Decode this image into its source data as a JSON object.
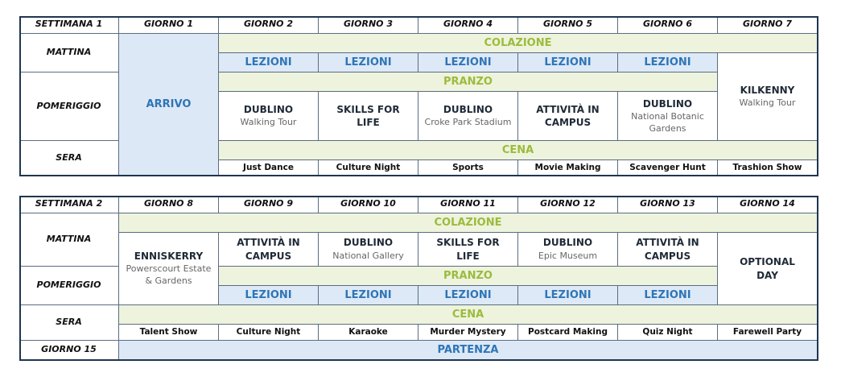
{
  "tables": [
    {
      "cells": [
        {
          "title": "SETTIMANA 1"
        },
        {
          "title": "GIORNO 1"
        },
        {
          "title": "GIORNO 2"
        },
        {
          "title": "GIORNO 3"
        },
        {
          "title": "GIORNO 4"
        },
        {
          "title": "GIORNO 5"
        },
        {
          "title": "GIORNO 6"
        },
        {
          "title": "GIORNO 7"
        },
        {
          "title": "MATTINA"
        },
        {
          "title": "POMERIGGIO"
        },
        {
          "title": "SERA"
        },
        {
          "title": "ARRIVO"
        },
        {
          "title": "COLAZIONE"
        },
        {
          "title": "LEZIONI"
        },
        {
          "title": "LEZIONI"
        },
        {
          "title": "LEZIONI"
        },
        {
          "title": "LEZIONI"
        },
        {
          "title": "LEZIONI"
        },
        {
          "title": "KILKENNY",
          "subtitle": "Walking Tour"
        },
        {
          "title": "PRANZO"
        },
        {
          "title": "DUBLINO",
          "subtitle": "Walking Tour"
        },
        {
          "title": "SKILLS FOR LIFE"
        },
        {
          "title": "DUBLINO",
          "subtitle": "Croke Park Stadium"
        },
        {
          "title": "ATTIVITÀ IN CAMPUS"
        },
        {
          "title": "DUBLINO",
          "subtitle": "National Botanic Gardens"
        },
        {
          "title": "CENA"
        },
        {
          "title": "Just Dance"
        },
        {
          "title": "Culture Night"
        },
        {
          "title": "Sports"
        },
        {
          "title": "Movie Making"
        },
        {
          "title": "Scavenger Hunt"
        },
        {
          "title": "Trashion Show"
        }
      ]
    },
    {
      "cells": [
        {
          "title": "SETTIMANA 2"
        },
        {
          "title": "GIORNO 8"
        },
        {
          "title": "GIORNO 9"
        },
        {
          "title": "GIORNO 10"
        },
        {
          "title": "GIORNO 11"
        },
        {
          "title": "GIORNO 12"
        },
        {
          "title": "GIORNO 13"
        },
        {
          "title": "GIORNO 14"
        },
        {
          "title": "MATTINA"
        },
        {
          "title": "POMERIGGIO"
        },
        {
          "title": "SERA"
        },
        {
          "title": "GIORNO 15"
        },
        {
          "title": "COLAZIONE"
        },
        {
          "title": "ENNISKERRY",
          "subtitle": "Powerscourt Estate & Gardens"
        },
        {
          "title": "ATTIVITÀ IN CAMPUS"
        },
        {
          "title": "DUBLINO",
          "subtitle": "National Gallery"
        },
        {
          "title": "SKILLS FOR LIFE"
        },
        {
          "title": "DUBLINO",
          "subtitle": "Epic Museum"
        },
        {
          "title": "ATTIVITÀ IN CAMPUS"
        },
        {
          "title": "OPTIONAL DAY"
        },
        {
          "title": "PRANZO"
        },
        {
          "title": "LEZIONI"
        },
        {
          "title": "LEZIONI"
        },
        {
          "title": "LEZIONI"
        },
        {
          "title": "LEZIONI"
        },
        {
          "title": "LEZIONI"
        },
        {
          "title": "CENA"
        },
        {
          "title": "Talent Show"
        },
        {
          "title": "Culture Night"
        },
        {
          "title": "Karaoke"
        },
        {
          "title": "Murder Mystery"
        },
        {
          "title": "Postcard Making"
        },
        {
          "title": "Quiz Night"
        },
        {
          "title": "Farewell Party"
        },
        {
          "title": "PARTENZA"
        }
      ]
    }
  ]
}
